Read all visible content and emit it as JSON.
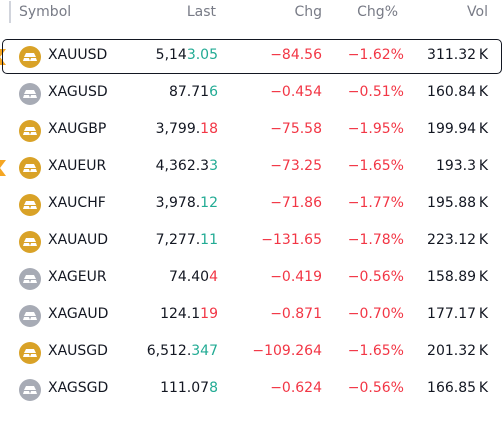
{
  "header": {
    "symbol": "Symbol",
    "last": "Last",
    "chg": "Chg",
    "chg_pct": "Chg%",
    "vol": "Vol"
  },
  "colors": {
    "positive": "#22ab94",
    "negative": "#f23645",
    "gold": "#d9a227",
    "silver": "#a7abb5",
    "flag": "#f5a623"
  },
  "rows": [
    {
      "symbol": "XAUUSD",
      "metal": "gold",
      "last_head": "5,14",
      "last_tail": "3.05",
      "tail_dir": "up",
      "chg": "−84.56",
      "chg_pct": "−1.62%",
      "vol": "311.32 K",
      "flagged": true,
      "selected": true
    },
    {
      "symbol": "XAGUSD",
      "metal": "silver",
      "last_head": "87.71",
      "last_tail": "6",
      "tail_dir": "up",
      "chg": "−0.454",
      "chg_pct": "−0.51%",
      "vol": "160.84 K",
      "flagged": false,
      "selected": false
    },
    {
      "symbol": "XAUGBP",
      "metal": "gold",
      "last_head": "3,799.",
      "last_tail": "18",
      "tail_dir": "down",
      "chg": "−75.58",
      "chg_pct": "−1.95%",
      "vol": "199.94 K",
      "flagged": false,
      "selected": false
    },
    {
      "symbol": "XAUEUR",
      "metal": "gold",
      "last_head": "4,362.3",
      "last_tail": "3",
      "tail_dir": "up",
      "chg": "−73.25",
      "chg_pct": "−1.65%",
      "vol": "193.3 K",
      "flagged": true,
      "selected": false
    },
    {
      "symbol": "XAUCHF",
      "metal": "gold",
      "last_head": "3,978.",
      "last_tail": "12",
      "tail_dir": "up",
      "chg": "−71.86",
      "chg_pct": "−1.77%",
      "vol": "195.88 K",
      "flagged": false,
      "selected": false
    },
    {
      "symbol": "XAUAUD",
      "metal": "gold",
      "last_head": "7,277.",
      "last_tail": "11",
      "tail_dir": "up",
      "chg": "−131.65",
      "chg_pct": "−1.78%",
      "vol": "223.12 K",
      "flagged": false,
      "selected": false
    },
    {
      "symbol": "XAGEUR",
      "metal": "silver",
      "last_head": "74.40",
      "last_tail": "4",
      "tail_dir": "down",
      "chg": "−0.419",
      "chg_pct": "−0.56%",
      "vol": "158.89 K",
      "flagged": false,
      "selected": false
    },
    {
      "symbol": "XAGAUD",
      "metal": "silver",
      "last_head": "124.1",
      "last_tail": "19",
      "tail_dir": "down",
      "chg": "−0.871",
      "chg_pct": "−0.70%",
      "vol": "177.17 K",
      "flagged": false,
      "selected": false
    },
    {
      "symbol": "XAUSGD",
      "metal": "gold",
      "last_head": "6,512.",
      "last_tail": "347",
      "tail_dir": "up",
      "chg": "−109.264",
      "chg_pct": "−1.65%",
      "vol": "201.32 K",
      "flagged": false,
      "selected": false
    },
    {
      "symbol": "XAGSGD",
      "metal": "silver",
      "last_head": "111.07",
      "last_tail": "8",
      "tail_dir": "up",
      "chg": "−0.624",
      "chg_pct": "−0.56%",
      "vol": "166.85 K",
      "flagged": false,
      "selected": false
    }
  ]
}
